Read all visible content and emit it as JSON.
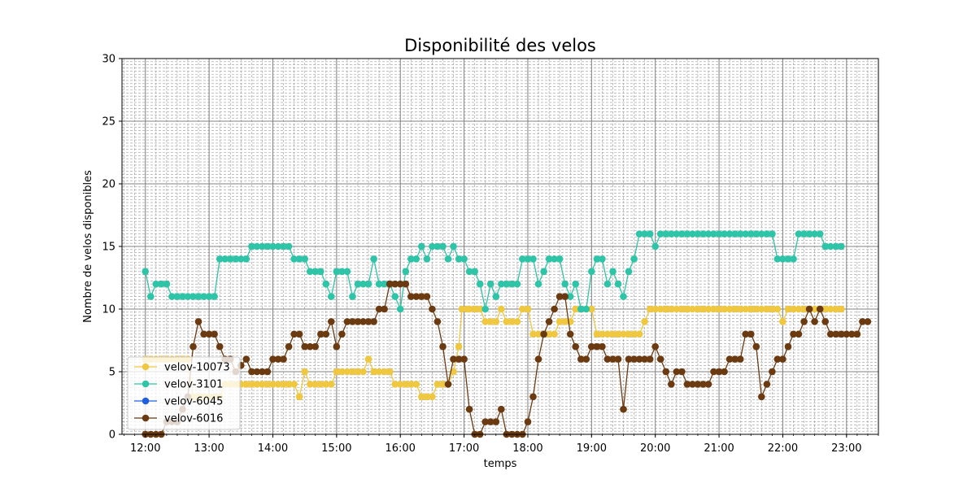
{
  "chart_data": {
    "type": "line",
    "title": "Disponibilité des velos",
    "xlabel": "temps",
    "ylabel": "Nombre de velos disponibles",
    "xlim": [
      "11:38",
      "23:30"
    ],
    "ylim": [
      0,
      30
    ],
    "x_ticks": [
      "12:00",
      "13:00",
      "14:00",
      "15:00",
      "16:00",
      "17:00",
      "18:00",
      "19:00",
      "20:00",
      "21:00",
      "22:00",
      "23:00"
    ],
    "y_ticks": [
      0,
      5,
      10,
      15,
      20,
      25,
      30
    ],
    "grid": true,
    "minor_grid": true,
    "legend_position": "lower-left",
    "series": [
      {
        "name": "velov-10073",
        "color": "#f0c840",
        "points": [
          [
            "12:00",
            6
          ],
          [
            "12:40",
            6
          ],
          [
            "12:45",
            3
          ],
          [
            "13:10",
            3
          ],
          [
            "13:15",
            4
          ],
          [
            "14:20",
            4
          ],
          [
            "14:25",
            3
          ],
          [
            "14:30",
            5
          ],
          [
            "14:35",
            4
          ],
          [
            "14:55",
            4
          ],
          [
            "15:00",
            5
          ],
          [
            "15:25",
            5
          ],
          [
            "15:30",
            6
          ],
          [
            "15:35",
            5
          ],
          [
            "15:50",
            5
          ],
          [
            "15:55",
            4
          ],
          [
            "16:15",
            4
          ],
          [
            "16:20",
            3
          ],
          [
            "16:30",
            3
          ],
          [
            "16:35",
            4
          ],
          [
            "16:45",
            4
          ],
          [
            "16:50",
            5
          ],
          [
            "16:55",
            7
          ],
          [
            "16:58",
            10
          ],
          [
            "17:05",
            10
          ],
          [
            "17:15",
            10
          ],
          [
            "17:20",
            9
          ],
          [
            "17:30",
            9
          ],
          [
            "17:35",
            10
          ],
          [
            "17:40",
            9
          ],
          [
            "17:50",
            9
          ],
          [
            "17:55",
            10
          ],
          [
            "18:00",
            10
          ],
          [
            "18:05",
            8
          ],
          [
            "18:25",
            8
          ],
          [
            "18:30",
            9
          ],
          [
            "18:40",
            9
          ],
          [
            "18:45",
            10
          ],
          [
            "19:00",
            10
          ],
          [
            "19:05",
            8
          ],
          [
            "19:45",
            8
          ],
          [
            "19:50",
            9
          ],
          [
            "19:55",
            10
          ],
          [
            "21:55",
            10
          ],
          [
            "22:00",
            9
          ],
          [
            "22:05",
            10
          ],
          [
            "22:55",
            10
          ]
        ]
      },
      {
        "name": "velov-3101",
        "color": "#2ec4a8",
        "points": [
          [
            "12:00",
            13
          ],
          [
            "12:05",
            11
          ],
          [
            "12:10",
            12
          ],
          [
            "12:20",
            12
          ],
          [
            "12:25",
            11
          ],
          [
            "13:05",
            11
          ],
          [
            "13:10",
            14
          ],
          [
            "13:35",
            14
          ],
          [
            "13:40",
            15
          ],
          [
            "14:15",
            15
          ],
          [
            "14:20",
            14
          ],
          [
            "14:30",
            14
          ],
          [
            "14:35",
            13
          ],
          [
            "14:45",
            13
          ],
          [
            "14:50",
            12
          ],
          [
            "14:55",
            11
          ],
          [
            "15:00",
            13
          ],
          [
            "15:10",
            13
          ],
          [
            "15:15",
            11
          ],
          [
            "15:20",
            12
          ],
          [
            "15:30",
            12
          ],
          [
            "15:35",
            14
          ],
          [
            "15:40",
            12
          ],
          [
            "15:50",
            12
          ],
          [
            "15:55",
            11
          ],
          [
            "16:00",
            10
          ],
          [
            "16:05",
            13
          ],
          [
            "16:10",
            14
          ],
          [
            "16:15",
            14
          ],
          [
            "16:20",
            15
          ],
          [
            "16:25",
            14
          ],
          [
            "16:30",
            15
          ],
          [
            "16:40",
            15
          ],
          [
            "16:45",
            14
          ],
          [
            "16:50",
            15
          ],
          [
            "16:55",
            14
          ],
          [
            "17:00",
            14
          ],
          [
            "17:05",
            13
          ],
          [
            "17:10",
            13
          ],
          [
            "17:15",
            12
          ],
          [
            "17:20",
            10
          ],
          [
            "17:25",
            12
          ],
          [
            "17:30",
            11
          ],
          [
            "17:35",
            12
          ],
          [
            "17:50",
            12
          ],
          [
            "17:55",
            14
          ],
          [
            "18:05",
            14
          ],
          [
            "18:10",
            12
          ],
          [
            "18:15",
            13
          ],
          [
            "18:20",
            14
          ],
          [
            "18:30",
            14
          ],
          [
            "18:35",
            12
          ],
          [
            "18:40",
            11
          ],
          [
            "18:45",
            12
          ],
          [
            "18:50",
            10
          ],
          [
            "18:55",
            10
          ],
          [
            "19:00",
            13
          ],
          [
            "19:05",
            14
          ],
          [
            "19:10",
            14
          ],
          [
            "19:15",
            12
          ],
          [
            "19:20",
            13
          ],
          [
            "19:25",
            12
          ],
          [
            "19:30",
            11
          ],
          [
            "19:35",
            13
          ],
          [
            "19:40",
            14
          ],
          [
            "19:45",
            16
          ],
          [
            "19:55",
            16
          ],
          [
            "20:00",
            15
          ],
          [
            "20:05",
            16
          ],
          [
            "21:50",
            16
          ],
          [
            "21:55",
            14
          ],
          [
            "22:10",
            14
          ],
          [
            "22:15",
            16
          ],
          [
            "22:35",
            16
          ],
          [
            "22:40",
            15
          ],
          [
            "22:55",
            15
          ]
        ]
      },
      {
        "name": "velov-6045",
        "color": "#1f5fe0",
        "points": []
      },
      {
        "name": "velov-6016",
        "color": "#6b3a10",
        "points": [
          [
            "12:00",
            0
          ],
          [
            "12:15",
            0
          ],
          [
            "12:20",
            1
          ],
          [
            "12:30",
            1
          ],
          [
            "12:35",
            2
          ],
          [
            "12:40",
            3
          ],
          [
            "12:45",
            7
          ],
          [
            "12:50",
            9
          ],
          [
            "12:55",
            8
          ],
          [
            "13:05",
            8
          ],
          [
            "13:10",
            7
          ],
          [
            "13:15",
            6
          ],
          [
            "13:20",
            6
          ],
          [
            "13:25",
            5
          ],
          [
            "13:35",
            6
          ],
          [
            "13:40",
            5
          ],
          [
            "13:55",
            5
          ],
          [
            "14:00",
            6
          ],
          [
            "14:10",
            6
          ],
          [
            "14:15",
            7
          ],
          [
            "14:20",
            8
          ],
          [
            "14:25",
            8
          ],
          [
            "14:30",
            7
          ],
          [
            "14:40",
            7
          ],
          [
            "14:45",
            8
          ],
          [
            "14:50",
            8
          ],
          [
            "14:55",
            9
          ],
          [
            "15:00",
            7
          ],
          [
            "15:05",
            8
          ],
          [
            "15:10",
            9
          ],
          [
            "15:35",
            9
          ],
          [
            "15:40",
            10
          ],
          [
            "15:45",
            10
          ],
          [
            "15:50",
            12
          ],
          [
            "16:05",
            12
          ],
          [
            "16:10",
            11
          ],
          [
            "16:25",
            11
          ],
          [
            "16:30",
            10
          ],
          [
            "16:35",
            9
          ],
          [
            "16:40",
            7
          ],
          [
            "16:45",
            4
          ],
          [
            "16:50",
            6
          ],
          [
            "17:00",
            6
          ],
          [
            "17:05",
            2
          ],
          [
            "17:10",
            0
          ],
          [
            "17:15",
            0
          ],
          [
            "17:20",
            1
          ],
          [
            "17:30",
            1
          ],
          [
            "17:35",
            2
          ],
          [
            "17:40",
            0
          ],
          [
            "17:55",
            0
          ],
          [
            "18:00",
            1
          ],
          [
            "18:05",
            3
          ],
          [
            "18:10",
            6
          ],
          [
            "18:15",
            8
          ],
          [
            "18:20",
            9
          ],
          [
            "18:25",
            10
          ],
          [
            "18:30",
            11
          ],
          [
            "18:35",
            11
          ],
          [
            "18:40",
            8
          ],
          [
            "18:45",
            7
          ],
          [
            "18:50",
            6
          ],
          [
            "18:55",
            6
          ],
          [
            "19:00",
            7
          ],
          [
            "19:10",
            7
          ],
          [
            "19:15",
            6
          ],
          [
            "19:25",
            6
          ],
          [
            "19:30",
            2
          ],
          [
            "19:35",
            6
          ],
          [
            "19:55",
            6
          ],
          [
            "20:00",
            7
          ],
          [
            "20:05",
            6
          ],
          [
            "20:10",
            5
          ],
          [
            "20:15",
            4
          ],
          [
            "20:20",
            5
          ],
          [
            "20:25",
            5
          ],
          [
            "20:30",
            4
          ],
          [
            "20:50",
            4
          ],
          [
            "20:55",
            5
          ],
          [
            "21:05",
            5
          ],
          [
            "21:10",
            6
          ],
          [
            "21:20",
            6
          ],
          [
            "21:25",
            8
          ],
          [
            "21:30",
            8
          ],
          [
            "21:35",
            7
          ],
          [
            "21:40",
            3
          ],
          [
            "21:45",
            4
          ],
          [
            "21:50",
            5
          ],
          [
            "21:55",
            6
          ],
          [
            "22:00",
            6
          ],
          [
            "22:05",
            7
          ],
          [
            "22:10",
            8
          ],
          [
            "22:15",
            8
          ],
          [
            "22:20",
            9
          ],
          [
            "22:25",
            10
          ],
          [
            "22:30",
            9
          ],
          [
            "22:35",
            10
          ],
          [
            "22:40",
            9
          ],
          [
            "22:45",
            8
          ],
          [
            "23:10",
            8
          ],
          [
            "23:15",
            9
          ],
          [
            "23:20",
            9
          ]
        ]
      }
    ]
  }
}
